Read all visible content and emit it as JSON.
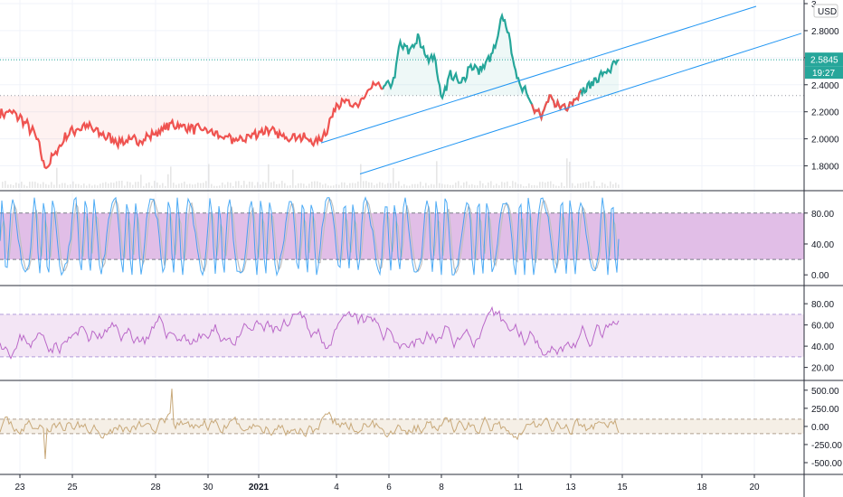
{
  "colors": {
    "up": "#26a69a",
    "down": "#ef5350",
    "channel": "#2196f3",
    "stoch_k": "#2196f3",
    "stoch_d": "#c0c0c0",
    "stoch_band": "#e1bee7",
    "rsi_line": "#ba68c8",
    "rsi_band": "#f3e5f5",
    "cci_line": "#c8a97a",
    "cci_band": "#f5efe6",
    "label_bg": "#26a69a",
    "grid": "#f0f3fa",
    "divider": "#2a2e39"
  },
  "chart_data": [
    {
      "type": "line",
      "pane": "price",
      "currency": "USD",
      "ylim": [
        1.65,
        3.0
      ],
      "yticks": [
        {
          "v": 3.0,
          "label": "3"
        },
        {
          "v": 2.8,
          "label": "2.8000"
        },
        {
          "v": 2.6,
          "label": "2.6000"
        },
        {
          "v": 2.4,
          "label": "2.4000"
        },
        {
          "v": 2.2,
          "label": "2.2000"
        },
        {
          "v": 2.0,
          "label": "2.0000"
        },
        {
          "v": 1.8,
          "label": "1.8000"
        }
      ],
      "last_price": "2.5845",
      "last_value": 2.5845,
      "countdown": "19:27",
      "reference_level": 2.32,
      "series_knots": [
        [
          0,
          2.18
        ],
        [
          12,
          2.2
        ],
        [
          25,
          2.14
        ],
        [
          40,
          2.02
        ],
        [
          50,
          1.78
        ],
        [
          60,
          1.88
        ],
        [
          75,
          2.04
        ],
        [
          95,
          2.1
        ],
        [
          110,
          2.04
        ],
        [
          130,
          1.98
        ],
        [
          155,
          1.99
        ],
        [
          175,
          2.05
        ],
        [
          190,
          2.11
        ],
        [
          210,
          2.08
        ],
        [
          230,
          2.06
        ],
        [
          250,
          2.0
        ],
        [
          265,
          1.99
        ],
        [
          280,
          2.03
        ],
        [
          295,
          2.07
        ],
        [
          310,
          2.02
        ],
        [
          330,
          2.02
        ],
        [
          350,
          1.97
        ],
        [
          360,
          2.05
        ],
        [
          372,
          2.25
        ],
        [
          380,
          2.3
        ],
        [
          390,
          2.22
        ],
        [
          402,
          2.3
        ],
        [
          415,
          2.4
        ],
        [
          425,
          2.38
        ],
        [
          435,
          2.42
        ],
        [
          442,
          2.7
        ],
        [
          452,
          2.65
        ],
        [
          462,
          2.74
        ],
        [
          472,
          2.6
        ],
        [
          480,
          2.62
        ],
        [
          488,
          2.3
        ],
        [
          498,
          2.48
        ],
        [
          510,
          2.4
        ],
        [
          520,
          2.55
        ],
        [
          530,
          2.5
        ],
        [
          540,
          2.58
        ],
        [
          548,
          2.68
        ],
        [
          556,
          2.92
        ],
        [
          563,
          2.75
        ],
        [
          572,
          2.42
        ],
        [
          580,
          2.38
        ],
        [
          590,
          2.24
        ],
        [
          598,
          2.16
        ],
        [
          608,
          2.3
        ],
        [
          618,
          2.24
        ],
        [
          628,
          2.25
        ],
        [
          640,
          2.33
        ],
        [
          650,
          2.38
        ],
        [
          660,
          2.45
        ],
        [
          672,
          2.5
        ],
        [
          684,
          2.58
        ]
      ],
      "color_switch_x": 424,
      "channel_upper": [
        [
          355,
          1.97
        ],
        [
          836,
          2.98
        ]
      ],
      "channel_lower": [
        [
          398,
          1.74
        ],
        [
          886,
          2.78
        ]
      ],
      "volume": true
    },
    {
      "type": "line",
      "pane": "stochastic",
      "ylim": [
        -8,
        102
      ],
      "yticks": [
        {
          "v": 80,
          "label": "80.00"
        },
        {
          "v": 40,
          "label": "40.00"
        },
        {
          "v": 0,
          "label": "0.00"
        }
      ],
      "band": [
        20,
        80
      ],
      "series": [
        {
          "kind": "k"
        },
        {
          "kind": "d"
        }
      ]
    },
    {
      "type": "line",
      "pane": "rsi",
      "ylim": [
        12,
        92
      ],
      "yticks": [
        {
          "v": 80,
          "label": "80.00"
        },
        {
          "v": 60,
          "label": "60.00"
        },
        {
          "v": 40,
          "label": "40.00"
        },
        {
          "v": 20,
          "label": "20.00"
        }
      ],
      "band": [
        30,
        70
      ]
    },
    {
      "type": "line",
      "pane": "cci",
      "ylim": [
        -600,
        560
      ],
      "yticks": [
        {
          "v": 500,
          "label": "500.00"
        },
        {
          "v": 250,
          "label": "250.00"
        },
        {
          "v": 0,
          "label": "0.00"
        },
        {
          "v": -250,
          "label": "-250.00"
        },
        {
          "v": -500,
          "label": "-500.00"
        }
      ],
      "band": [
        -100,
        100
      ]
    }
  ],
  "x_axis": {
    "ticks": [
      {
        "label": "23",
        "bold": false
      },
      {
        "label": "25",
        "bold": false
      },
      {
        "label": "28",
        "bold": false
      },
      {
        "label": "30",
        "bold": false
      },
      {
        "label": "2021",
        "bold": true
      },
      {
        "label": "4",
        "bold": false
      },
      {
        "label": "6",
        "bold": false
      },
      {
        "label": "8",
        "bold": false
      },
      {
        "label": "11",
        "bold": false
      },
      {
        "label": "13",
        "bold": false
      },
      {
        "label": "15",
        "bold": false
      },
      {
        "label": "18",
        "bold": false
      },
      {
        "label": "20",
        "bold": false
      }
    ]
  }
}
